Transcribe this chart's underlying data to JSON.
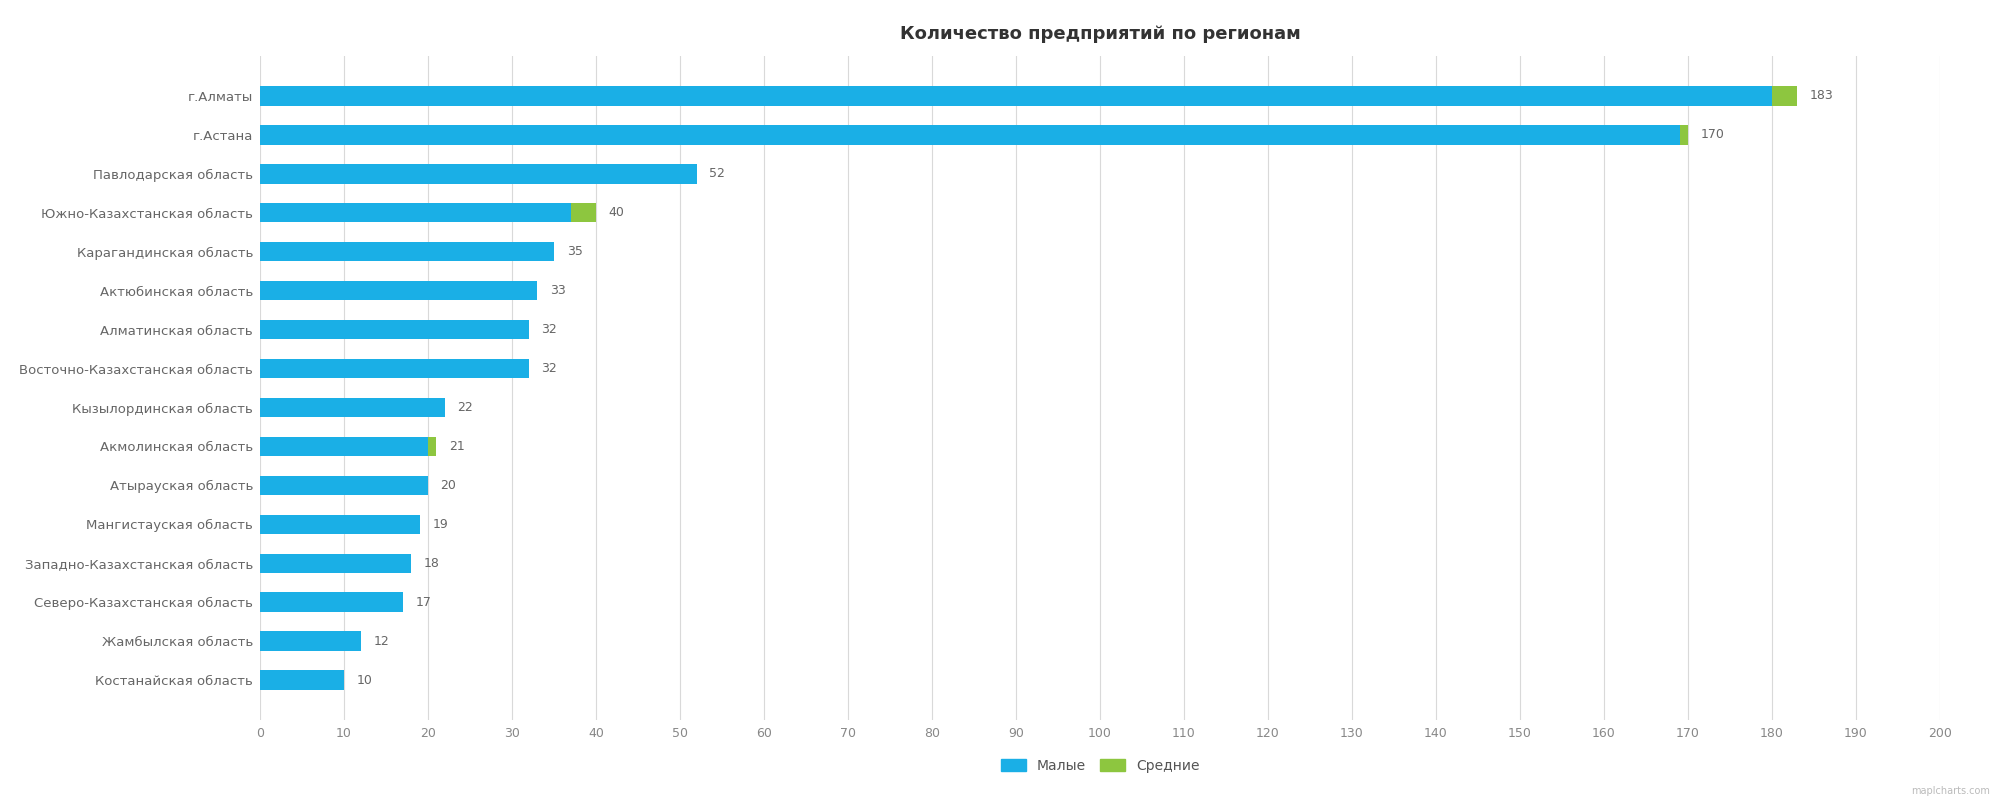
{
  "title": "Количество предприятий по регионам",
  "categories": [
    "г.Алматы",
    "г.Астана",
    "Павлодарская область",
    "Южно-Казахстанская область",
    "Карагандинская область",
    "Актюбинская область",
    "Алматинская область",
    "Восточно-Казахстанская область",
    "Кызылординская область",
    "Акмолинская область",
    "Атырауская область",
    "Мангистауская область",
    "Западно-Казахстанская область",
    "Северо-Казахстанская область",
    "Жамбылская область",
    "Костанайская область"
  ],
  "малые": [
    180,
    169,
    52,
    37,
    35,
    33,
    32,
    32,
    22,
    20,
    20,
    19,
    18,
    17,
    12,
    10
  ],
  "средние": [
    3,
    1,
    0,
    3,
    0,
    0,
    0,
    0,
    0,
    1,
    0,
    0,
    0,
    0,
    0,
    0
  ],
  "totals": [
    183,
    170,
    52,
    40,
    35,
    33,
    32,
    32,
    22,
    21,
    20,
    19,
    18,
    17,
    12,
    10
  ],
  "color_малые": "#1aafe6",
  "color_средние": "#8dc63f",
  "legend_малые": "Малые",
  "legend_средние": "Средние",
  "xlim": [
    0,
    200
  ],
  "xticks": [
    0,
    10,
    20,
    30,
    40,
    50,
    60,
    70,
    80,
    90,
    100,
    110,
    120,
    130,
    140,
    150,
    160,
    170,
    180,
    190,
    200
  ],
  "background_color": "#ffffff",
  "grid_color": "#d9d9d9",
  "title_fontsize": 13,
  "label_fontsize": 9.5,
  "tick_fontsize": 9,
  "watermark": "maplcharts.com"
}
